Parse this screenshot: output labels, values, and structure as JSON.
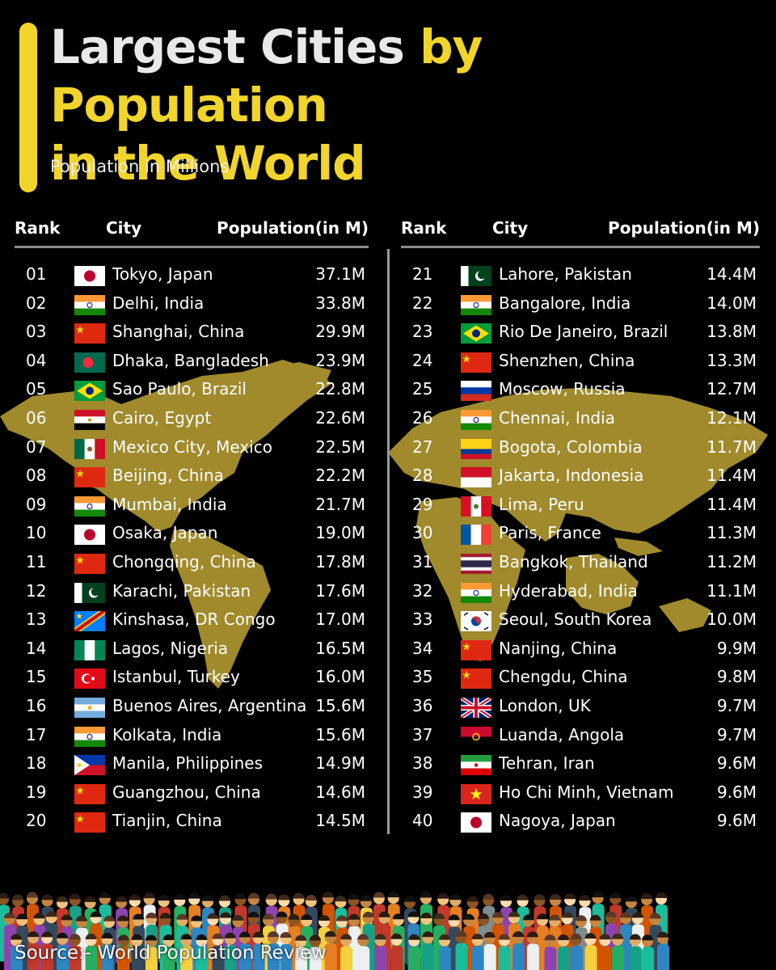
{
  "title": {
    "part1": "Largest Cities",
    "part2": "by Population",
    "part3": "in the World"
  },
  "subtitle": "Population in Millions",
  "headers": {
    "rank": "Rank",
    "city": "City",
    "population": "Population(in M)"
  },
  "source": "Source:- World Population Review",
  "colors": {
    "accent": "#f2d52b",
    "map": "#a08a2c",
    "background": "#000000",
    "rule": "#8c8c8c"
  },
  "chart_data": {
    "type": "table",
    "title": "Largest Cities by Population in the World",
    "subtitle": "Population in Millions",
    "columns": [
      "Rank",
      "City",
      "Population(in M)"
    ],
    "rows": [
      {
        "rank": "01",
        "city": "Tokyo, Japan",
        "population": "37.1M",
        "value": 37.1,
        "flag": "japan-flag-icon"
      },
      {
        "rank": "02",
        "city": "Delhi, India",
        "population": "33.8M",
        "value": 33.8,
        "flag": "india-flag-icon"
      },
      {
        "rank": "03",
        "city": "Shanghai, China",
        "population": "29.9M",
        "value": 29.9,
        "flag": "china-flag-icon"
      },
      {
        "rank": "04",
        "city": "Dhaka, Bangladesh",
        "population": "23.9M",
        "value": 23.9,
        "flag": "bangladesh-flag-icon"
      },
      {
        "rank": "05",
        "city": "Sao Paulo, Brazil",
        "population": "22.8M",
        "value": 22.8,
        "flag": "brazil-flag-icon"
      },
      {
        "rank": "06",
        "city": "Cairo, Egypt",
        "population": "22.6M",
        "value": 22.6,
        "flag": "egypt-flag-icon"
      },
      {
        "rank": "07",
        "city": "Mexico City, Mexico",
        "population": "22.5M",
        "value": 22.5,
        "flag": "mexico-flag-icon"
      },
      {
        "rank": "08",
        "city": "Beijing, China",
        "population": "22.2M",
        "value": 22.2,
        "flag": "china-flag-icon"
      },
      {
        "rank": "09",
        "city": "Mumbai, India",
        "population": "21.7M",
        "value": 21.7,
        "flag": "india-flag-icon"
      },
      {
        "rank": "10",
        "city": "Osaka, Japan",
        "population": "19.0M",
        "value": 19.0,
        "flag": "japan-flag-icon"
      },
      {
        "rank": "11",
        "city": "Chongqing, China",
        "population": "17.8M",
        "value": 17.8,
        "flag": "china-flag-icon"
      },
      {
        "rank": "12",
        "city": "Karachi, Pakistan",
        "population": "17.6M",
        "value": 17.6,
        "flag": "pakistan-flag-icon"
      },
      {
        "rank": "13",
        "city": "Kinshasa, DR Congo",
        "population": "17.0M",
        "value": 17.0,
        "flag": "drcongo-flag-icon"
      },
      {
        "rank": "14",
        "city": "Lagos, Nigeria",
        "population": "16.5M",
        "value": 16.5,
        "flag": "nigeria-flag-icon"
      },
      {
        "rank": "15",
        "city": "Istanbul, Turkey",
        "population": "16.0M",
        "value": 16.0,
        "flag": "turkey-flag-icon"
      },
      {
        "rank": "16",
        "city": "Buenos Aires, Argentina",
        "population": "15.6M",
        "value": 15.6,
        "flag": "argentina-flag-icon"
      },
      {
        "rank": "17",
        "city": "Kolkata, India",
        "population": "15.6M",
        "value": 15.6,
        "flag": "india-flag-icon"
      },
      {
        "rank": "18",
        "city": "Manila, Philippines",
        "population": "14.9M",
        "value": 14.9,
        "flag": "philippines-flag-icon"
      },
      {
        "rank": "19",
        "city": "Guangzhou, China",
        "population": "14.6M",
        "value": 14.6,
        "flag": "china-flag-icon"
      },
      {
        "rank": "20",
        "city": "Tianjin, China",
        "population": "14.5M",
        "value": 14.5,
        "flag": "china-flag-icon"
      },
      {
        "rank": "21",
        "city": "Lahore, Pakistan",
        "population": "14.4M",
        "value": 14.4,
        "flag": "pakistan-flag-icon"
      },
      {
        "rank": "22",
        "city": "Bangalore, India",
        "population": "14.0M",
        "value": 14.0,
        "flag": "india-flag-icon"
      },
      {
        "rank": "23",
        "city": "Rio De Janeiro, Brazil",
        "population": "13.8M",
        "value": 13.8,
        "flag": "brazil-flag-icon"
      },
      {
        "rank": "24",
        "city": "Shenzhen, China",
        "population": "13.3M",
        "value": 13.3,
        "flag": "china-flag-icon"
      },
      {
        "rank": "25",
        "city": "Moscow, Russia",
        "population": "12.7M",
        "value": 12.7,
        "flag": "russia-flag-icon"
      },
      {
        "rank": "26",
        "city": "Chennai, India",
        "population": "12.1M",
        "value": 12.1,
        "flag": "india-flag-icon"
      },
      {
        "rank": "27",
        "city": "Bogota, Colombia",
        "population": "11.7M",
        "value": 11.7,
        "flag": "colombia-flag-icon"
      },
      {
        "rank": "28",
        "city": "Jakarta, Indonesia",
        "population": "11.4M",
        "value": 11.4,
        "flag": "indonesia-flag-icon"
      },
      {
        "rank": "29",
        "city": "Lima, Peru",
        "population": "11.4M",
        "value": 11.4,
        "flag": "peru-flag-icon"
      },
      {
        "rank": "30",
        "city": "Paris, France",
        "population": "11.3M",
        "value": 11.3,
        "flag": "france-flag-icon"
      },
      {
        "rank": "31",
        "city": "Bangkok, Thailand",
        "population": "11.2M",
        "value": 11.2,
        "flag": "thailand-flag-icon"
      },
      {
        "rank": "32",
        "city": "Hyderabad, India",
        "population": "11.1M",
        "value": 11.1,
        "flag": "india-flag-icon"
      },
      {
        "rank": "33",
        "city": "Seoul, South Korea",
        "population": "10.0M",
        "value": 10.0,
        "flag": "southkorea-flag-icon"
      },
      {
        "rank": "34",
        "city": "Nanjing, China",
        "population": "9.9M",
        "value": 9.9,
        "flag": "china-flag-icon"
      },
      {
        "rank": "35",
        "city": "Chengdu, China",
        "population": "9.8M",
        "value": 9.8,
        "flag": "china-flag-icon"
      },
      {
        "rank": "36",
        "city": "London, UK",
        "population": "9.7M",
        "value": 9.7,
        "flag": "uk-flag-icon"
      },
      {
        "rank": "37",
        "city": "Luanda, Angola",
        "population": "9.7M",
        "value": 9.7,
        "flag": "angola-flag-icon"
      },
      {
        "rank": "38",
        "city": "Tehran, Iran",
        "population": "9.6M",
        "value": 9.6,
        "flag": "iran-flag-icon"
      },
      {
        "rank": "39",
        "city": "Ho Chi Minh, Vietnam",
        "population": "9.6M",
        "value": 9.6,
        "flag": "vietnam-flag-icon"
      },
      {
        "rank": "40",
        "city": "Nagoya, Japan",
        "population": "9.6M",
        "value": 9.6,
        "flag": "japan-flag-icon"
      }
    ]
  }
}
